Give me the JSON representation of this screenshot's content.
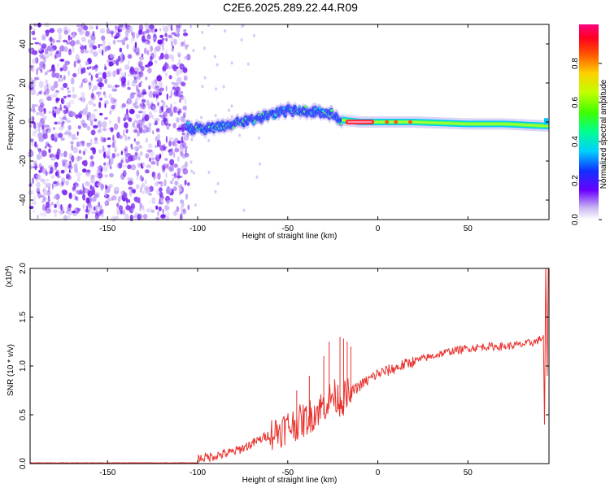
{
  "title": "C2E6.2025.289.22.44.R09",
  "chart_data": [
    {
      "type": "heatmap",
      "name": "spectrogram",
      "xlabel": "Height of straight line (km)",
      "ylabel": "Frequency (Hz)",
      "xlim": [
        -193,
        95
      ],
      "ylim": [
        -50,
        50
      ],
      "xticks": [
        -150,
        -100,
        -50,
        0,
        50
      ],
      "yticks": [
        -40,
        -20,
        0,
        20,
        40
      ],
      "ridge": {
        "x": [
          -105,
          -95,
          -85,
          -75,
          -65,
          -55,
          -45,
          -35,
          -25,
          -20,
          -10,
          0,
          20,
          50,
          70,
          93
        ],
        "freq": [
          -4,
          -3,
          -2,
          0,
          2,
          5,
          6,
          5,
          4,
          1,
          0,
          0,
          0,
          -1,
          -1,
          -2
        ]
      },
      "noise_region": [
        -193,
        -105
      ]
    },
    {
      "type": "colorbar",
      "label": "Normalized spectral amplitude",
      "range": [
        0,
        1
      ],
      "ticks": [
        "0.0",
        "0.2",
        "0.4",
        "0.6",
        "0.8"
      ],
      "tick_values": [
        0,
        0.2,
        0.4,
        0.6,
        0.8
      ]
    },
    {
      "type": "line",
      "name": "snr",
      "xlabel": "Height of straight line (km)",
      "ylabel": "SNR (10 * v/v)",
      "multiplier": "(x10",
      "multiplier_exp": "4",
      "multiplier_close": ")",
      "xlim": [
        -193,
        95
      ],
      "ylim": [
        0,
        2.0
      ],
      "xticks": [
        -150,
        -100,
        -50,
        0,
        50
      ],
      "yticks": [
        "0.0",
        "0.5",
        "1.0",
        "1.5",
        "2.0"
      ],
      "ytick_values": [
        0,
        0.5,
        1.0,
        1.5,
        2.0
      ],
      "color": "#e8312d",
      "x": [
        -193,
        -110,
        -100,
        -90,
        -80,
        -70,
        -60,
        -50,
        -40,
        -30,
        -25,
        -20,
        -10,
        0,
        10,
        20,
        30,
        40,
        50,
        60,
        70,
        80,
        88,
        92,
        93,
        94
      ],
      "y": [
        0.0,
        0.0,
        0.05,
        0.08,
        0.12,
        0.2,
        0.3,
        0.38,
        0.45,
        0.6,
        0.7,
        0.65,
        0.8,
        0.92,
        0.98,
        1.05,
        1.1,
        1.15,
        1.18,
        1.2,
        1.2,
        1.22,
        1.25,
        1.3,
        0.4,
        2.0
      ],
      "spikes": [
        {
          "x": -30,
          "y": 1.1
        },
        {
          "x": -27,
          "y": 1.25
        },
        {
          "x": -21,
          "y": 1.3
        },
        {
          "x": -19,
          "y": 1.28
        },
        {
          "x": -17,
          "y": 1.25
        },
        {
          "x": -15,
          "y": 1.2
        },
        {
          "x": -38,
          "y": 0.9
        },
        {
          "x": -45,
          "y": 0.75
        }
      ]
    }
  ]
}
